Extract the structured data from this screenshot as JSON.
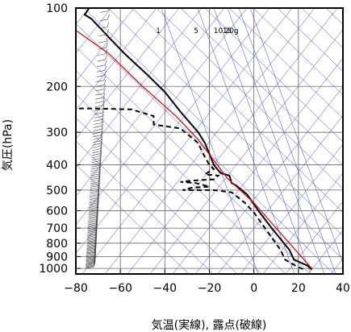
{
  "chart_data": {
    "type": "line",
    "title": "",
    "xlabel": "気温(実線), 露点(破線)",
    "ylabel": "気圧(hPa)",
    "x_axis": {
      "ticks": [
        -80,
        -60,
        -40,
        -20,
        0,
        20,
        40
      ],
      "tick_labels": [
        "−80",
        "−60",
        "−40",
        "−20",
        "0",
        "20",
        "40"
      ],
      "range": [
        -80,
        40
      ]
    },
    "y_axis": {
      "scale": "log",
      "ticks": [
        100,
        200,
        300,
        400,
        500,
        600,
        700,
        800,
        900,
        1000
      ],
      "tick_labels": [
        "100",
        "200",
        "300",
        "400",
        "500",
        "600",
        "700",
        "800",
        "900",
        "1000"
      ],
      "range": [
        100,
        1050
      ]
    },
    "grid": true,
    "mixing_ratio_labels": [
      {
        "text": "1",
        "t": -43,
        "p": 118
      },
      {
        "text": "5",
        "t": -26,
        "p": 118
      },
      {
        "text": "10",
        "t": -16,
        "p": 118
      },
      {
        "text": "15",
        "t": -12,
        "p": 118
      },
      {
        "text": "20g",
        "t": -10,
        "p": 118
      }
    ],
    "series": [
      {
        "name": "",
        "style": "solid",
        "color": "#000000",
        "points": [
          [
            26,
            1010
          ],
          [
            24,
            975
          ],
          [
            18,
            925
          ],
          [
            16,
            850
          ],
          [
            8,
            700
          ],
          [
            2,
            600
          ],
          [
            -3,
            520
          ],
          [
            -8,
            480
          ],
          [
            -10,
            470
          ],
          [
            -11,
            440
          ],
          [
            -15,
            430
          ],
          [
            -18,
            400
          ],
          [
            -22,
            330
          ],
          [
            -25,
            300
          ],
          [
            -33,
            250
          ],
          [
            -40,
            210
          ],
          [
            -48,
            180
          ],
          [
            -58,
            150
          ],
          [
            -65,
            130
          ],
          [
            -73,
            110
          ],
          [
            -76,
            106
          ],
          [
            -74,
            100
          ],
          [
            -70,
            100
          ]
        ]
      },
      {
        "name": "",
        "style": "dashed",
        "color": "#000000",
        "points": [
          [
            22,
            1005
          ],
          [
            20,
            990
          ],
          [
            14,
            925
          ],
          [
            12,
            850
          ],
          [
            6,
            720
          ],
          [
            0,
            610
          ],
          [
            -4,
            560
          ],
          [
            -10,
            510
          ],
          [
            -18,
            500
          ],
          [
            -32,
            500
          ],
          [
            -28,
            490
          ],
          [
            -20,
            485
          ],
          [
            -26,
            470
          ],
          [
            -33,
            465
          ],
          [
            -28,
            460
          ],
          [
            -18,
            455
          ],
          [
            -16,
            440
          ],
          [
            -22,
            435
          ],
          [
            -18,
            415
          ],
          [
            -20,
            400
          ],
          [
            -23,
            360
          ],
          [
            -25,
            330
          ],
          [
            -33,
            290
          ],
          [
            -45,
            280
          ],
          [
            -45,
            260
          ],
          [
            -55,
            245
          ],
          [
            -72,
            243
          ],
          [
            -80,
            243
          ]
        ]
      },
      {
        "name": "",
        "style": "solid",
        "color": "#dd0000",
        "points": [
          [
            26,
            1000
          ],
          [
            10,
            700
          ],
          [
            0,
            560
          ],
          [
            -12,
            450
          ],
          [
            -25,
            320
          ],
          [
            -35,
            260
          ],
          [
            -50,
            200
          ],
          [
            -65,
            150
          ],
          [
            -81,
            120
          ]
        ]
      }
    ],
    "reference_lines": {
      "color": "#3340cc",
      "isotherms_skewed": true,
      "dry_adiabats": true,
      "mixing_ratio_lines": true
    },
    "wind_barbs": {
      "present": true,
      "position": "left",
      "p_start": 1000,
      "p_end": 100
    }
  }
}
